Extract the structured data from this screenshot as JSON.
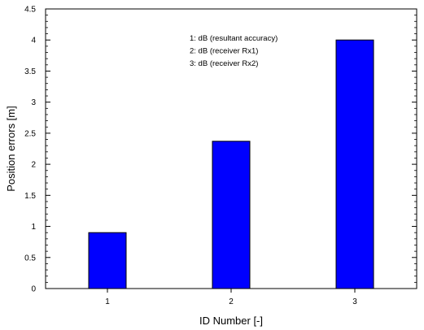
{
  "chart_data": {
    "type": "bar",
    "categories": [
      "1",
      "2",
      "3"
    ],
    "values": [
      0.9,
      2.37,
      4.0
    ],
    "title": "",
    "xlabel": "ID Number [-]",
    "ylabel": "Position errors [m]",
    "ylim": [
      0,
      4.5
    ],
    "y_ticks": [
      "0",
      "0.5",
      "1",
      "1.5",
      "2",
      "2.5",
      "3",
      "3.5",
      "4",
      "4.5"
    ],
    "bar_color": "#0000ff",
    "bar_edge_color": "#000000",
    "grid": false,
    "annotations": [
      "1: dB (resultant accuracy)",
      "2: dB (receiver Rx1)",
      "3: dB (receiver Rx2)"
    ]
  }
}
